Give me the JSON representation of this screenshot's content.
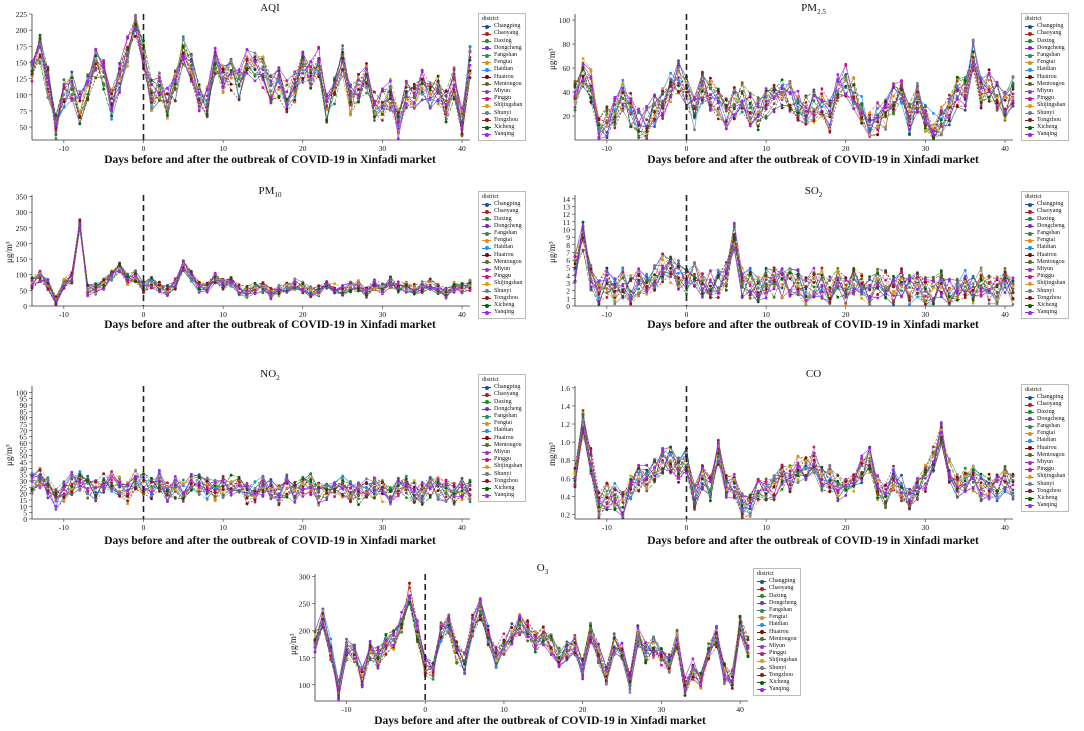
{
  "legend": {
    "title": "district",
    "districts": [
      "Changping",
      "Chaoyang",
      "Daxing",
      "Dongcheng",
      "Fangshan",
      "Fengtai",
      "Haidian",
      "Huairou",
      "Mentougou",
      "Miyun",
      "Pinggu",
      "Shijingshan",
      "Shunyi",
      "Tongzhou",
      "Xicheng",
      "Yanqing"
    ],
    "colors": [
      "#1f4e9c",
      "#b22222",
      "#228b22",
      "#7b2fb5",
      "#2e8b57",
      "#e08a1e",
      "#1e90ff",
      "#8b0000",
      "#556b2f",
      "#9932cc",
      "#c71585",
      "#d4a017",
      "#708090",
      "#8b1a1a",
      "#006400",
      "#a020f0"
    ]
  },
  "x_label": "Days before and after the outbreak of COVID-19 in Xinfadi market",
  "chart_data": [
    {
      "type": "line",
      "id": "aqi",
      "title": "AQI",
      "ylabel": "",
      "x_range": [
        -14,
        41
      ],
      "ylim": [
        30,
        225
      ],
      "yticks": [
        50,
        75,
        100,
        125,
        150,
        175,
        200,
        225
      ],
      "xticks": [
        -10,
        0,
        10,
        20,
        30,
        40
      ],
      "base": [
        135,
        170,
        120,
        45,
        100,
        115,
        80,
        115,
        150,
        130,
        85,
        125,
        165,
        210,
        160,
        100,
        115,
        88,
        112,
        170,
        140,
        95,
        88,
        150,
        120,
        130,
        115,
        150,
        140,
        135,
        105,
        120,
        98,
        112,
        142,
        130,
        150,
        80,
        105,
        152,
        92,
        110,
        125,
        83,
        85,
        100,
        55,
        100,
        98,
        115,
        95,
        105,
        82,
        118,
        60,
        150
      ],
      "spread": 25,
      "seed": 1
    },
    {
      "type": "line",
      "id": "pm25",
      "title": "PM2.5",
      "ylabel": "μg/m³",
      "x_range": [
        -14,
        41
      ],
      "ylim": [
        0,
        105
      ],
      "yticks": [
        20,
        40,
        60,
        80,
        100
      ],
      "xticks": [
        -10,
        0,
        10,
        20,
        30,
        40
      ],
      "base": [
        38,
        55,
        45,
        8,
        15,
        22,
        38,
        25,
        12,
        15,
        25,
        30,
        44,
        52,
        40,
        22,
        44,
        38,
        30,
        22,
        30,
        35,
        25,
        22,
        30,
        35,
        40,
        35,
        30,
        25,
        28,
        30,
        20,
        42,
        50,
        40,
        25,
        10,
        18,
        22,
        35,
        40,
        18,
        35,
        15,
        12,
        18,
        25,
        40,
        38,
        72,
        40,
        45,
        35,
        30,
        40
      ],
      "spread": 14,
      "seed": 2
    },
    {
      "type": "line",
      "id": "pm10",
      "title": "PM10",
      "ylabel": "μg/m³",
      "x_range": [
        -14,
        41
      ],
      "ylim": [
        0,
        355
      ],
      "yticks": [
        0,
        50,
        100,
        150,
        200,
        250,
        300,
        350
      ],
      "xticks": [
        -10,
        0,
        10,
        20,
        30,
        40
      ],
      "base": [
        75,
        95,
        70,
        18,
        70,
        90,
        260,
        50,
        55,
        70,
        100,
        120,
        85,
        95,
        60,
        75,
        60,
        50,
        70,
        130,
        95,
        60,
        60,
        90,
        70,
        80,
        50,
        45,
        55,
        60,
        40,
        50,
        60,
        70,
        60,
        45,
        50,
        70,
        55,
        50,
        60,
        65,
        45,
        70,
        55,
        75,
        60,
        60,
        55,
        60,
        70,
        55,
        40,
        60,
        55,
        65
      ],
      "spread": 18,
      "seed": 3
    },
    {
      "type": "line",
      "id": "so2",
      "title": "SO2",
      "ylabel": "μg/m³",
      "x_range": [
        -14,
        41
      ],
      "ylim": [
        0,
        14.5
      ],
      "yticks": [
        0,
        1,
        2,
        3,
        4,
        5,
        6,
        7,
        8,
        9,
        10,
        11,
        12,
        13,
        14
      ],
      "xticks": [
        -10,
        0,
        10,
        20,
        30,
        40
      ],
      "base": [
        5,
        9,
        4,
        2,
        3,
        2,
        3,
        2,
        3,
        3,
        4,
        5,
        5,
        4,
        3,
        4,
        3,
        3,
        3,
        4,
        9,
        3,
        3,
        2,
        3,
        3,
        3,
        3,
        3,
        2,
        3,
        3,
        2,
        3,
        2,
        3,
        3,
        2,
        3,
        3,
        2,
        3,
        2,
        3,
        2,
        2,
        3,
        2,
        2,
        3,
        2,
        3,
        2,
        2,
        3,
        2
      ],
      "spread": 2,
      "seed": 4
    },
    {
      "type": "line",
      "id": "no2",
      "title": "NO2",
      "ylabel": "μg/m³",
      "x_range": [
        -14,
        41
      ],
      "ylim": [
        0,
        105
      ],
      "yticks": [
        0,
        5,
        10,
        15,
        20,
        25,
        30,
        35,
        40,
        45,
        50,
        55,
        60,
        65,
        70,
        75,
        80,
        85,
        90,
        95,
        100
      ],
      "xticks": [
        -10,
        0,
        10,
        20,
        30,
        40
      ],
      "base": [
        28,
        32,
        25,
        15,
        22,
        28,
        30,
        25,
        22,
        28,
        30,
        25,
        20,
        32,
        28,
        25,
        30,
        20,
        25,
        22,
        30,
        28,
        24,
        22,
        25,
        26,
        24,
        20,
        22,
        25,
        24,
        20,
        26,
        22,
        25,
        28,
        20,
        22,
        24,
        26,
        22,
        20,
        24,
        25,
        22,
        20,
        24,
        25,
        22,
        20,
        26,
        24,
        22,
        20,
        24,
        22
      ],
      "spread": 9,
      "seed": 5
    },
    {
      "type": "line",
      "id": "co",
      "title": "CO",
      "ylabel": "mg/m³",
      "x_range": [
        -14,
        41
      ],
      "ylim": [
        0.15,
        1.62
      ],
      "yticks": [
        0.2,
        0.4,
        0.6,
        0.8,
        1.0,
        1.2,
        1.4,
        1.6
      ],
      "xticks": [
        -10,
        0,
        10,
        20,
        30,
        40
      ],
      "base": [
        0.6,
        1.2,
        0.8,
        0.3,
        0.4,
        0.4,
        0.3,
        0.5,
        0.6,
        0.6,
        0.7,
        0.8,
        0.8,
        0.7,
        0.8,
        0.4,
        0.6,
        0.5,
        0.9,
        0.5,
        0.5,
        0.3,
        0.3,
        0.5,
        0.5,
        0.5,
        0.6,
        0.6,
        0.7,
        0.7,
        0.8,
        0.6,
        0.6,
        0.5,
        0.5,
        0.6,
        0.7,
        0.8,
        0.5,
        0.4,
        0.6,
        0.5,
        0.4,
        0.5,
        0.6,
        0.8,
        1.1,
        0.7,
        0.5,
        0.6,
        0.6,
        0.5,
        0.5,
        0.5,
        0.6,
        0.5
      ],
      "spread": 0.15,
      "seed": 6
    },
    {
      "type": "line",
      "id": "o3",
      "title": "O3",
      "ylabel": "μg/m³",
      "x_range": [
        -14,
        41
      ],
      "ylim": [
        70,
        305
      ],
      "yticks": [
        100,
        150,
        200,
        250,
        300
      ],
      "xticks": [
        -10,
        0,
        10,
        20,
        30,
        40
      ],
      "base": [
        180,
        225,
        165,
        90,
        165,
        160,
        115,
        165,
        150,
        175,
        185,
        215,
        270,
        200,
        135,
        125,
        195,
        215,
        160,
        140,
        210,
        240,
        190,
        150,
        175,
        195,
        210,
        200,
        180,
        190,
        175,
        150,
        160,
        175,
        130,
        195,
        160,
        120,
        175,
        165,
        105,
        190,
        160,
        170,
        150,
        140,
        185,
        100,
        130,
        110,
        160,
        190,
        120,
        110,
        210,
        170
      ],
      "spread": 20,
      "seed": 7
    }
  ],
  "subscript_titles": {
    "pm25": [
      "PM",
      "2.5"
    ],
    "pm10": [
      "PM",
      "10"
    ],
    "so2": [
      "SO",
      "2"
    ],
    "no2": [
      "NO",
      "2"
    ],
    "o3": [
      "O",
      "3"
    ]
  }
}
